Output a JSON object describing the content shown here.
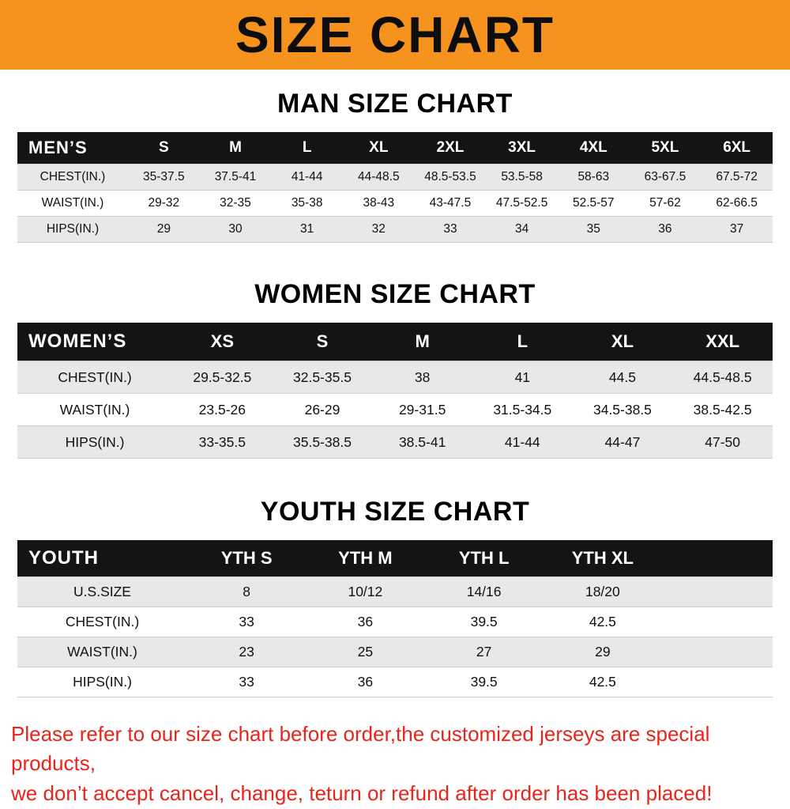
{
  "banner": {
    "title": "SIZE CHART"
  },
  "colors": {
    "banner_bg": "#F6921E",
    "table_header_bg": "#141414",
    "row_stripe": "#e8e8e8",
    "notice_text": "#E6251C"
  },
  "sections": [
    {
      "id": "men",
      "title": "MAN SIZE CHART",
      "corner_label": "MEN’S",
      "columns": [
        "S",
        "M",
        "L",
        "XL",
        "2XL",
        "3XL",
        "4XL",
        "5XL",
        "6XL"
      ],
      "rows": [
        {
          "label": "CHEST(IN.)",
          "values": [
            "35-37.5",
            "37.5-41",
            "41-44",
            "44-48.5",
            "48.5-53.5",
            "53.5-58",
            "58-63",
            "63-67.5",
            "67.5-72"
          ]
        },
        {
          "label": "WAIST(IN.)",
          "values": [
            "29-32",
            "32-35",
            "35-38",
            "38-43",
            "43-47.5",
            "47.5-52.5",
            "52.5-57",
            "57-62",
            "62-66.5"
          ]
        },
        {
          "label": "HIPS(IN.)",
          "values": [
            "29",
            "30",
            "31",
            "32",
            "33",
            "34",
            "35",
            "36",
            "37"
          ]
        }
      ]
    },
    {
      "id": "women",
      "title": "WOMEN SIZE CHART",
      "corner_label": "WOMEN’S",
      "columns": [
        "XS",
        "S",
        "M",
        "L",
        "XL",
        "XXL"
      ],
      "rows": [
        {
          "label": "CHEST(IN.)",
          "values": [
            "29.5-32.5",
            "32.5-35.5",
            "38",
            "41",
            "44.5",
            "44.5-48.5"
          ]
        },
        {
          "label": "WAIST(IN.)",
          "values": [
            "23.5-26",
            "26-29",
            "29-31.5",
            "31.5-34.5",
            "34.5-38.5",
            "38.5-42.5"
          ]
        },
        {
          "label": "HIPS(IN.)",
          "values": [
            "33-35.5",
            "35.5-38.5",
            "38.5-41",
            "41-44",
            "44-47",
            "47-50"
          ]
        }
      ]
    },
    {
      "id": "youth",
      "title": "YOUTH SIZE CHART",
      "corner_label": "YOUTH",
      "columns": [
        "YTH S",
        "YTH M",
        "YTH L",
        "YTH XL"
      ],
      "rows": [
        {
          "label": "U.S.SIZE",
          "values": [
            "8",
            "10/12",
            "14/16",
            "18/20"
          ]
        },
        {
          "label": "CHEST(IN.)",
          "values": [
            "33",
            "36",
            "39.5",
            "42.5"
          ]
        },
        {
          "label": "WAIST(IN.)",
          "values": [
            "23",
            "25",
            "27",
            "29"
          ]
        },
        {
          "label": "HIPS(IN.)",
          "values": [
            "33",
            "36",
            "39.5",
            "42.5"
          ]
        }
      ]
    }
  ],
  "footer": {
    "lines": [
      "Please refer to our size chart before order,the customized jerseys are special products,",
      "we don’t accept cancel, change, teturn or refund after order has been placed!"
    ]
  }
}
